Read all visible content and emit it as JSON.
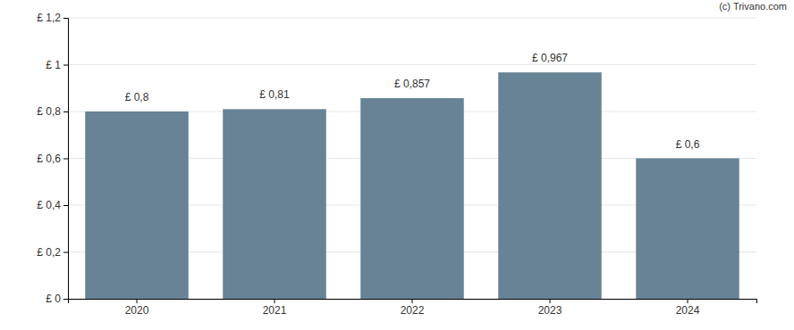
{
  "chart_data": {
    "type": "bar",
    "annotations": [
      "(c) Trivano.com"
    ],
    "categories": [
      "2020",
      "2021",
      "2022",
      "2023",
      "2024"
    ],
    "values": [
      0.8,
      0.81,
      0.857,
      0.967,
      0.6
    ],
    "value_labels": [
      "£ 0,8",
      "£ 0,81",
      "£ 0,857",
      "£ 0,967",
      "£ 0,6"
    ],
    "data_labels": true,
    "color": "#678395",
    "ylim": [
      0,
      1.2
    ],
    "yticks": [
      {
        "value": 0,
        "label": "£ 0"
      },
      {
        "value": 0.2,
        "label": "£ 0,2"
      },
      {
        "value": 0.4,
        "label": "£ 0,4"
      },
      {
        "value": 0.6,
        "label": "£ 0,6"
      },
      {
        "value": 0.8,
        "label": "£ 0,8"
      },
      {
        "value": 1,
        "label": "£ 1"
      },
      {
        "value": 1.2,
        "label": "£ 1,2"
      }
    ],
    "grid": true
  }
}
